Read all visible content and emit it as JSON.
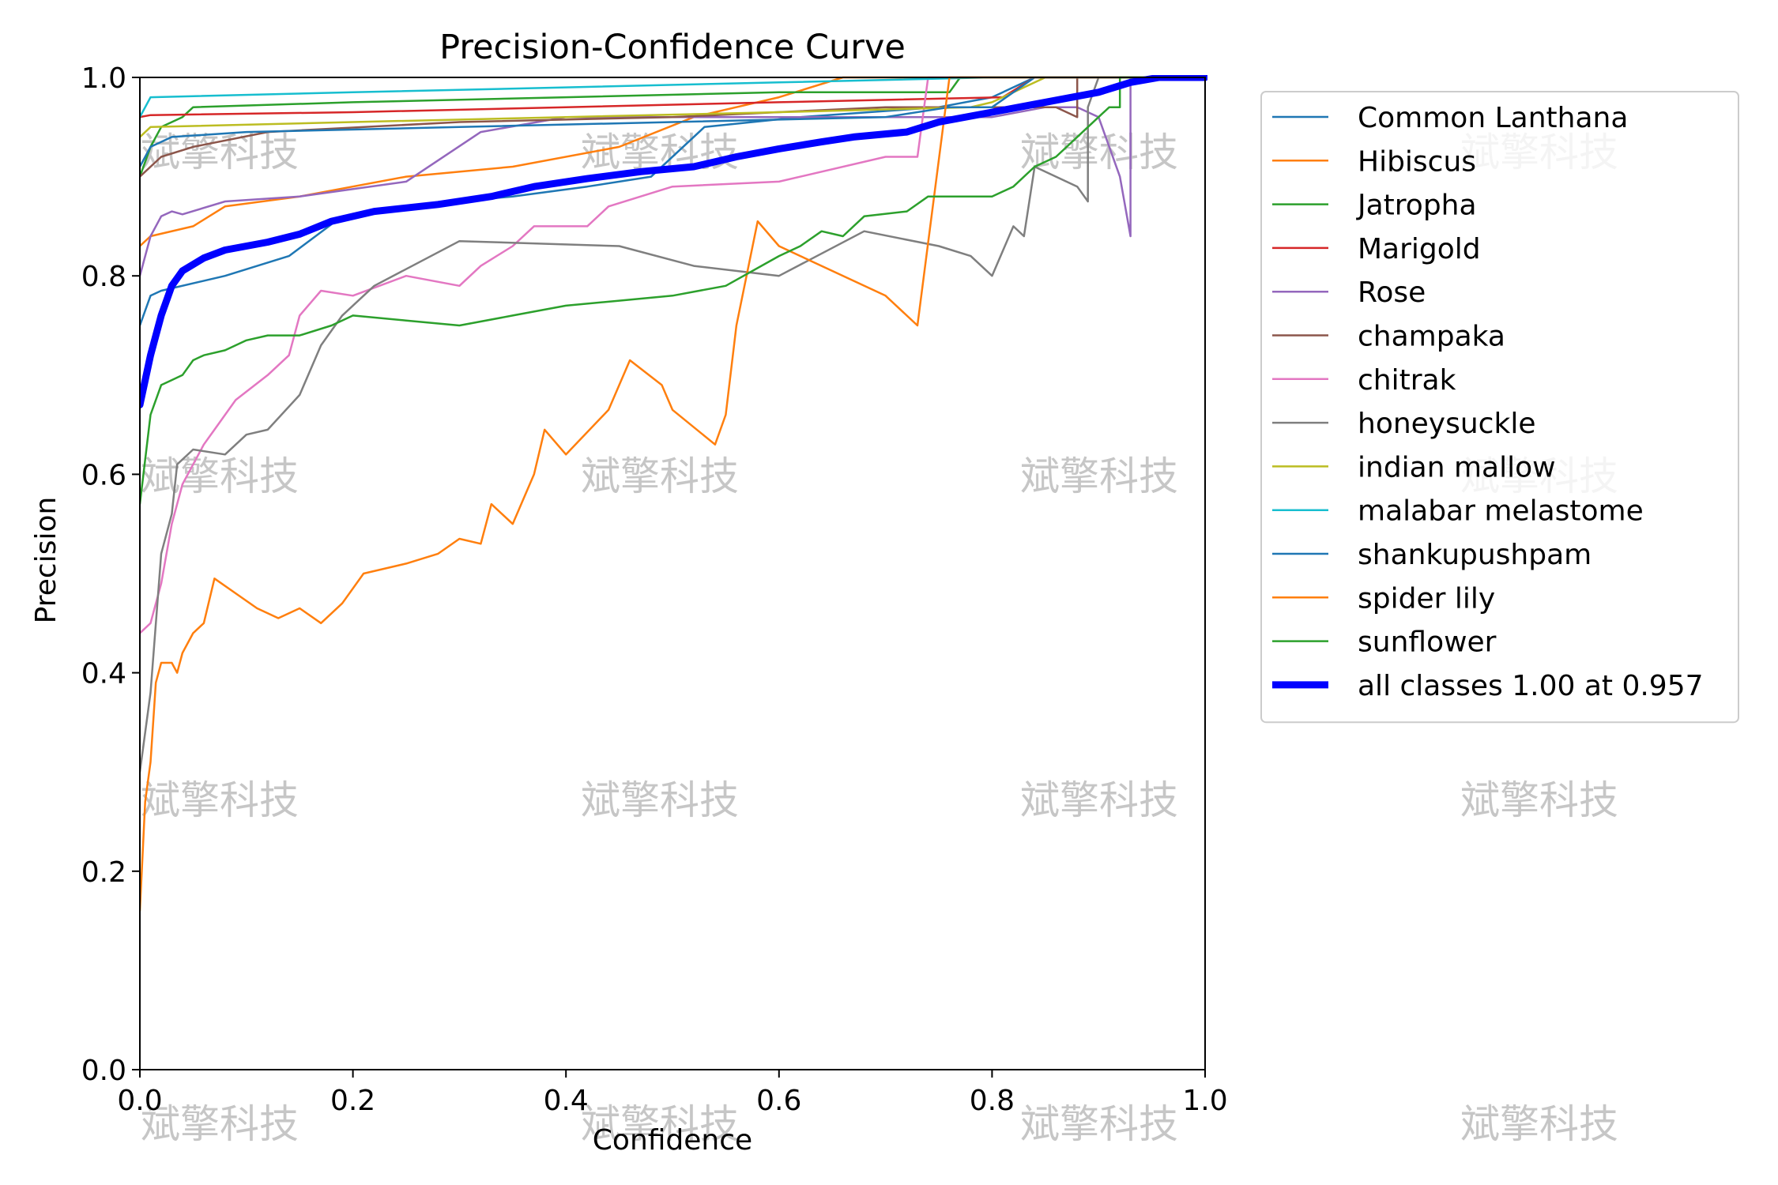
{
  "chart_data": {
    "type": "line",
    "title": "Precision-Confidence Curve",
    "xlabel": "Confidence",
    "ylabel": "Precision",
    "xlim": [
      0,
      1
    ],
    "ylim": [
      0,
      1
    ],
    "xticks": [
      "0.0",
      "0.2",
      "0.4",
      "0.6",
      "0.8",
      "1.0"
    ],
    "yticks": [
      "0.0",
      "0.2",
      "0.4",
      "0.6",
      "0.8",
      "1.0"
    ],
    "grid": false,
    "legend_position": "outside-right-top",
    "watermark": "斌擎科技",
    "series": [
      {
        "name": "Common Lanthana",
        "color": "#1f77b4",
        "points": [
          [
            0.0,
            0.75
          ],
          [
            0.01,
            0.78
          ],
          [
            0.02,
            0.785
          ],
          [
            0.08,
            0.8
          ],
          [
            0.14,
            0.82
          ],
          [
            0.19,
            0.86
          ],
          [
            0.25,
            0.87
          ],
          [
            0.35,
            0.88
          ],
          [
            0.42,
            0.89
          ],
          [
            0.48,
            0.9
          ],
          [
            0.53,
            0.95
          ],
          [
            0.62,
            0.96
          ],
          [
            0.75,
            0.97
          ],
          [
            0.8,
            0.98
          ],
          [
            0.84,
            1.0
          ],
          [
            1.0,
            1.0
          ]
        ]
      },
      {
        "name": "Hibiscus",
        "color": "#ff7f0e",
        "points": [
          [
            0.0,
            0.83
          ],
          [
            0.01,
            0.84
          ],
          [
            0.05,
            0.85
          ],
          [
            0.08,
            0.87
          ],
          [
            0.15,
            0.88
          ],
          [
            0.25,
            0.9
          ],
          [
            0.35,
            0.91
          ],
          [
            0.45,
            0.93
          ],
          [
            0.52,
            0.96
          ],
          [
            0.6,
            0.98
          ],
          [
            0.66,
            1.0
          ],
          [
            1.0,
            1.0
          ]
        ]
      },
      {
        "name": "Jatropha",
        "color": "#2ca02c",
        "points": [
          [
            0.0,
            0.9
          ],
          [
            0.01,
            0.93
          ],
          [
            0.02,
            0.95
          ],
          [
            0.04,
            0.96
          ],
          [
            0.05,
            0.97
          ],
          [
            0.2,
            0.975
          ],
          [
            0.4,
            0.98
          ],
          [
            0.6,
            0.985
          ],
          [
            0.76,
            0.985
          ],
          [
            0.77,
            1.0
          ],
          [
            1.0,
            1.0
          ]
        ]
      },
      {
        "name": "Marigold",
        "color": "#d62728",
        "points": [
          [
            0.0,
            0.96
          ],
          [
            0.01,
            0.962
          ],
          [
            0.2,
            0.965
          ],
          [
            0.4,
            0.97
          ],
          [
            0.6,
            0.975
          ],
          [
            0.81,
            0.98
          ],
          [
            0.84,
            1.0
          ],
          [
            1.0,
            1.0
          ]
        ]
      },
      {
        "name": "Rose",
        "color": "#9467bd",
        "points": [
          [
            0.0,
            0.8
          ],
          [
            0.01,
            0.84
          ],
          [
            0.02,
            0.86
          ],
          [
            0.03,
            0.865
          ],
          [
            0.04,
            0.862
          ],
          [
            0.08,
            0.875
          ],
          [
            0.15,
            0.88
          ],
          [
            0.25,
            0.895
          ],
          [
            0.32,
            0.945
          ],
          [
            0.4,
            0.96
          ],
          [
            0.5,
            0.96
          ],
          [
            0.6,
            0.96
          ],
          [
            0.7,
            0.96
          ],
          [
            0.8,
            0.96
          ],
          [
            0.85,
            0.97
          ],
          [
            0.88,
            0.97
          ],
          [
            0.9,
            0.96
          ],
          [
            0.92,
            0.9
          ],
          [
            0.93,
            0.84
          ],
          [
            0.93,
            1.0
          ],
          [
            1.0,
            1.0
          ]
        ]
      },
      {
        "name": "champaka",
        "color": "#8c564b",
        "points": [
          [
            0.0,
            0.9
          ],
          [
            0.02,
            0.92
          ],
          [
            0.05,
            0.93
          ],
          [
            0.12,
            0.945
          ],
          [
            0.3,
            0.955
          ],
          [
            0.5,
            0.96
          ],
          [
            0.7,
            0.97
          ],
          [
            0.8,
            0.97
          ],
          [
            0.86,
            0.97
          ],
          [
            0.88,
            0.96
          ],
          [
            0.88,
            1.0
          ],
          [
            1.0,
            1.0
          ]
        ]
      },
      {
        "name": "chitrak",
        "color": "#e377c2",
        "points": [
          [
            0.0,
            0.44
          ],
          [
            0.01,
            0.45
          ],
          [
            0.02,
            0.49
          ],
          [
            0.03,
            0.55
          ],
          [
            0.04,
            0.59
          ],
          [
            0.05,
            0.61
          ],
          [
            0.06,
            0.63
          ],
          [
            0.07,
            0.645
          ],
          [
            0.09,
            0.675
          ],
          [
            0.12,
            0.7
          ],
          [
            0.14,
            0.72
          ],
          [
            0.15,
            0.76
          ],
          [
            0.17,
            0.785
          ],
          [
            0.2,
            0.78
          ],
          [
            0.25,
            0.8
          ],
          [
            0.3,
            0.79
          ],
          [
            0.32,
            0.81
          ],
          [
            0.35,
            0.83
          ],
          [
            0.37,
            0.85
          ],
          [
            0.42,
            0.85
          ],
          [
            0.44,
            0.87
          ],
          [
            0.5,
            0.89
          ],
          [
            0.6,
            0.895
          ],
          [
            0.7,
            0.92
          ],
          [
            0.73,
            0.92
          ],
          [
            0.74,
            1.0
          ],
          [
            1.0,
            1.0
          ]
        ]
      },
      {
        "name": "honeysuckle",
        "color": "#7f7f7f",
        "points": [
          [
            0.0,
            0.3
          ],
          [
            0.01,
            0.38
          ],
          [
            0.02,
            0.52
          ],
          [
            0.03,
            0.56
          ],
          [
            0.035,
            0.61
          ],
          [
            0.05,
            0.625
          ],
          [
            0.08,
            0.62
          ],
          [
            0.1,
            0.64
          ],
          [
            0.12,
            0.645
          ],
          [
            0.15,
            0.68
          ],
          [
            0.17,
            0.73
          ],
          [
            0.19,
            0.76
          ],
          [
            0.22,
            0.79
          ],
          [
            0.3,
            0.835
          ],
          [
            0.45,
            0.83
          ],
          [
            0.52,
            0.81
          ],
          [
            0.6,
            0.8
          ],
          [
            0.68,
            0.845
          ],
          [
            0.75,
            0.83
          ],
          [
            0.78,
            0.82
          ],
          [
            0.8,
            0.8
          ],
          [
            0.82,
            0.85
          ],
          [
            0.83,
            0.84
          ],
          [
            0.84,
            0.91
          ],
          [
            0.88,
            0.89
          ],
          [
            0.89,
            0.875
          ],
          [
            0.89,
            0.97
          ],
          [
            0.9,
            1.0
          ],
          [
            1.0,
            1.0
          ]
        ]
      },
      {
        "name": "indian mallow",
        "color": "#bcbd22",
        "points": [
          [
            0.0,
            0.94
          ],
          [
            0.01,
            0.95
          ],
          [
            0.2,
            0.955
          ],
          [
            0.4,
            0.96
          ],
          [
            0.6,
            0.965
          ],
          [
            0.78,
            0.97
          ],
          [
            0.8,
            0.975
          ],
          [
            0.85,
            1.0
          ],
          [
            1.0,
            1.0
          ]
        ]
      },
      {
        "name": "malabar melastome",
        "color": "#17becf",
        "points": [
          [
            0.0,
            0.96
          ],
          [
            0.01,
            0.98
          ],
          [
            0.2,
            0.985
          ],
          [
            0.4,
            0.99
          ],
          [
            0.6,
            0.995
          ],
          [
            0.8,
            1.0
          ],
          [
            1.0,
            1.0
          ]
        ]
      },
      {
        "name": "shankupushpam",
        "color": "#1f77b4",
        "points": [
          [
            0.0,
            0.91
          ],
          [
            0.01,
            0.93
          ],
          [
            0.03,
            0.94
          ],
          [
            0.1,
            0.945
          ],
          [
            0.3,
            0.95
          ],
          [
            0.5,
            0.955
          ],
          [
            0.7,
            0.96
          ],
          [
            0.76,
            0.97
          ],
          [
            0.8,
            0.97
          ],
          [
            0.84,
            1.0
          ],
          [
            1.0,
            1.0
          ]
        ]
      },
      {
        "name": "spider lily",
        "color": "#ff7f0e",
        "points": [
          [
            0.0,
            0.16
          ],
          [
            0.005,
            0.27
          ],
          [
            0.01,
            0.31
          ],
          [
            0.015,
            0.39
          ],
          [
            0.02,
            0.41
          ],
          [
            0.03,
            0.41
          ],
          [
            0.035,
            0.4
          ],
          [
            0.04,
            0.42
          ],
          [
            0.05,
            0.44
          ],
          [
            0.06,
            0.45
          ],
          [
            0.07,
            0.495
          ],
          [
            0.09,
            0.48
          ],
          [
            0.11,
            0.465
          ],
          [
            0.13,
            0.455
          ],
          [
            0.15,
            0.465
          ],
          [
            0.17,
            0.45
          ],
          [
            0.19,
            0.47
          ],
          [
            0.21,
            0.5
          ],
          [
            0.25,
            0.51
          ],
          [
            0.28,
            0.52
          ],
          [
            0.3,
            0.535
          ],
          [
            0.32,
            0.53
          ],
          [
            0.33,
            0.57
          ],
          [
            0.35,
            0.55
          ],
          [
            0.37,
            0.6
          ],
          [
            0.38,
            0.645
          ],
          [
            0.4,
            0.62
          ],
          [
            0.44,
            0.665
          ],
          [
            0.46,
            0.715
          ],
          [
            0.49,
            0.69
          ],
          [
            0.5,
            0.665
          ],
          [
            0.54,
            0.63
          ],
          [
            0.55,
            0.66
          ],
          [
            0.56,
            0.75
          ],
          [
            0.58,
            0.855
          ],
          [
            0.6,
            0.83
          ],
          [
            0.62,
            0.82
          ],
          [
            0.7,
            0.78
          ],
          [
            0.73,
            0.75
          ],
          [
            0.76,
            1.0
          ],
          [
            1.0,
            1.0
          ]
        ]
      },
      {
        "name": "sunflower",
        "color": "#2ca02c",
        "points": [
          [
            0.0,
            0.57
          ],
          [
            0.01,
            0.66
          ],
          [
            0.02,
            0.69
          ],
          [
            0.03,
            0.695
          ],
          [
            0.04,
            0.7
          ],
          [
            0.05,
            0.715
          ],
          [
            0.06,
            0.72
          ],
          [
            0.08,
            0.725
          ],
          [
            0.1,
            0.735
          ],
          [
            0.12,
            0.74
          ],
          [
            0.15,
            0.74
          ],
          [
            0.18,
            0.75
          ],
          [
            0.2,
            0.76
          ],
          [
            0.25,
            0.755
          ],
          [
            0.3,
            0.75
          ],
          [
            0.35,
            0.76
          ],
          [
            0.4,
            0.77
          ],
          [
            0.45,
            0.775
          ],
          [
            0.5,
            0.78
          ],
          [
            0.55,
            0.79
          ],
          [
            0.6,
            0.82
          ],
          [
            0.62,
            0.83
          ],
          [
            0.64,
            0.845
          ],
          [
            0.66,
            0.84
          ],
          [
            0.68,
            0.86
          ],
          [
            0.72,
            0.865
          ],
          [
            0.74,
            0.88
          ],
          [
            0.8,
            0.88
          ],
          [
            0.82,
            0.89
          ],
          [
            0.84,
            0.91
          ],
          [
            0.86,
            0.92
          ],
          [
            0.88,
            0.94
          ],
          [
            0.9,
            0.96
          ],
          [
            0.91,
            0.97
          ],
          [
            0.92,
            0.97
          ],
          [
            0.92,
            1.0
          ],
          [
            1.0,
            1.0
          ]
        ]
      },
      {
        "name": "all classes 1.00 at 0.957",
        "color": "#0000ff",
        "bold": true,
        "points": [
          [
            0.0,
            0.67
          ],
          [
            0.01,
            0.72
          ],
          [
            0.02,
            0.76
          ],
          [
            0.03,
            0.79
          ],
          [
            0.04,
            0.805
          ],
          [
            0.06,
            0.818
          ],
          [
            0.08,
            0.826
          ],
          [
            0.12,
            0.834
          ],
          [
            0.15,
            0.842
          ],
          [
            0.18,
            0.855
          ],
          [
            0.22,
            0.865
          ],
          [
            0.28,
            0.872
          ],
          [
            0.33,
            0.88
          ],
          [
            0.37,
            0.89
          ],
          [
            0.42,
            0.898
          ],
          [
            0.47,
            0.905
          ],
          [
            0.52,
            0.91
          ],
          [
            0.56,
            0.92
          ],
          [
            0.6,
            0.928
          ],
          [
            0.64,
            0.935
          ],
          [
            0.67,
            0.94
          ],
          [
            0.72,
            0.945
          ],
          [
            0.75,
            0.955
          ],
          [
            0.8,
            0.965
          ],
          [
            0.85,
            0.975
          ],
          [
            0.9,
            0.985
          ],
          [
            0.93,
            0.995
          ],
          [
            0.957,
            1.0
          ],
          [
            1.0,
            1.0
          ]
        ]
      }
    ]
  }
}
